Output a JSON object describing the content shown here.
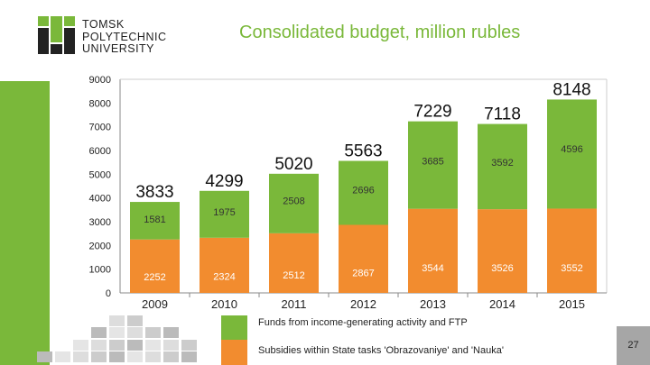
{
  "header": {
    "logo_text": [
      "TOMSK",
      "POLYTECHNIC",
      "UNIVERSITY"
    ],
    "title": "Consolidated budget, million rubles"
  },
  "page_number": "27",
  "colors": {
    "green": "#7ab83a",
    "orange": "#f28c2f",
    "sidebar": "#7ab83a"
  },
  "chart_data": {
    "type": "bar",
    "stacked": true,
    "title": "Consolidated budget, million rubles",
    "categories": [
      "2009",
      "2010",
      "2011",
      "2012",
      "2013",
      "2014",
      "2015"
    ],
    "series": [
      {
        "name": "Subsidies within State tasks 'Obrazovaniye' and 'Nauka'",
        "color": "#f28c2f",
        "values": [
          2252,
          2324,
          2512,
          2867,
          3544,
          3526,
          3552
        ]
      },
      {
        "name": "Funds from income-generating activity and FTP",
        "color": "#7ab83a",
        "values": [
          1581,
          1975,
          2508,
          2696,
          3685,
          3592,
          4596
        ]
      }
    ],
    "totals": [
      3833,
      4299,
      5020,
      5563,
      7229,
      7118,
      8148
    ],
    "ylim": [
      0,
      9000
    ],
    "yticks": [
      0,
      1000,
      2000,
      3000,
      4000,
      5000,
      6000,
      7000,
      8000,
      9000
    ],
    "grid": false,
    "legend": "bottom"
  }
}
